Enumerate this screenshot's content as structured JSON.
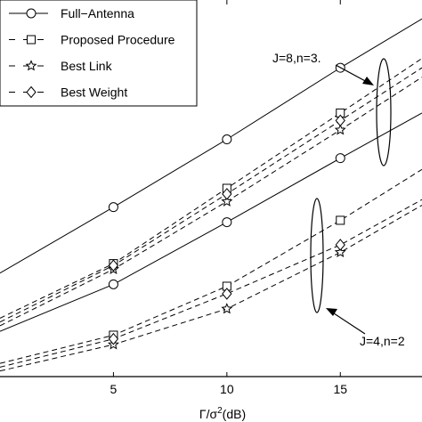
{
  "chart_data": {
    "type": "line",
    "title": "",
    "xlabel": "Γ/σ²(dB)",
    "ylabel": "",
    "xlim": [
      0,
      18.6
    ],
    "ylim": [
      0,
      10
    ],
    "x_ticks": [
      5,
      10,
      15
    ],
    "grid": false,
    "legend_position": "top-left",
    "legend": [
      {
        "name": "Full−Antenna",
        "marker": "circle",
        "style": "solid"
      },
      {
        "name": "Proposed Procedure",
        "marker": "square",
        "style": "dashed"
      },
      {
        "name": "Best Link",
        "marker": "star",
        "style": "dashed"
      },
      {
        "name": "Best Weight",
        "marker": "diamond",
        "style": "dashed"
      }
    ],
    "groups": [
      {
        "label": "J=8,n=3.",
        "series": [
          {
            "name": "Full−Antenna",
            "x": [
              0,
              5,
              10,
              15,
              18.6
            ],
            "y": [
              2.75,
              4.5,
              6.3,
              8.2,
              9.5
            ]
          },
          {
            "name": "Proposed Procedure",
            "x": [
              0,
              5,
              10,
              15,
              18.6
            ],
            "y": [
              1.55,
              3.0,
              5.0,
              7.0,
              8.45
            ]
          },
          {
            "name": "Best Link",
            "x": [
              0,
              5,
              10,
              15,
              18.6
            ],
            "y": [
              1.35,
              2.85,
              4.65,
              6.55,
              7.95
            ]
          },
          {
            "name": "Best Weight",
            "x": [
              0,
              5,
              10,
              15,
              18.6
            ],
            "y": [
              1.45,
              2.95,
              4.85,
              6.8,
              8.2
            ]
          }
        ]
      },
      {
        "label": "J=4,n=2",
        "series": [
          {
            "name": "Full−Antenna",
            "x": [
              0,
              5,
              10,
              15,
              18.6
            ],
            "y": [
              1.2,
              2.45,
              4.1,
              5.8,
              7.0
            ]
          },
          {
            "name": "Proposed Procedure",
            "x": [
              0,
              5,
              10,
              15,
              18.6
            ],
            "y": [
              0.35,
              1.1,
              2.4,
              4.15,
              5.5
            ]
          },
          {
            "name": "Best Link",
            "x": [
              0,
              5,
              10,
              15,
              18.6
            ],
            "y": [
              0.15,
              0.85,
              1.8,
              3.3,
              4.55
            ]
          },
          {
            "name": "Best Weight",
            "x": [
              0,
              5,
              10,
              15,
              18.6
            ],
            "y": [
              0.25,
              1.0,
              2.2,
              3.5,
              4.7
            ]
          }
        ]
      }
    ],
    "annotations": [
      "J=8,n=3.",
      "J=4,n=2"
    ]
  }
}
